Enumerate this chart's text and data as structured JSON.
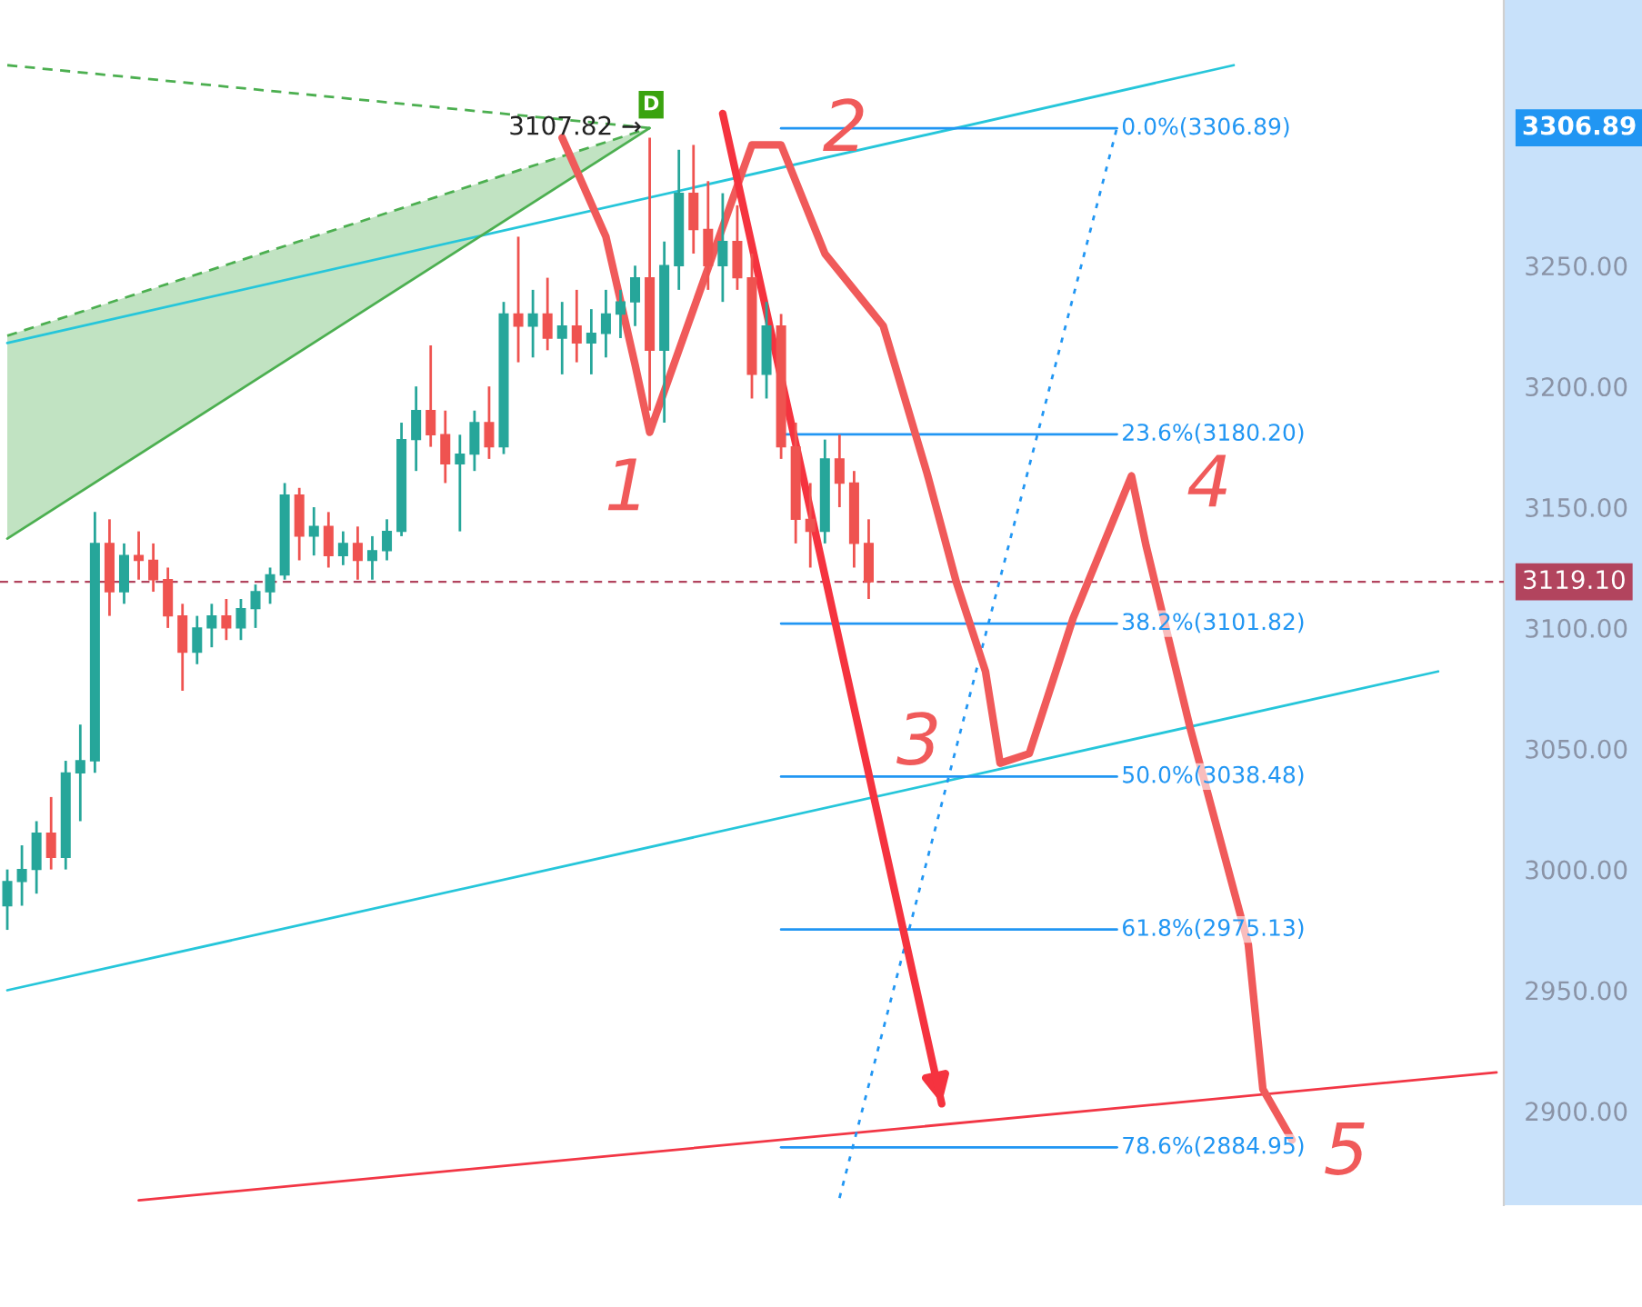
{
  "chart_data": {
    "type": "candlestick",
    "categories": [
      null,
      null,
      null,
      null,
      null,
      null,
      null,
      null,
      null,
      null,
      null,
      null,
      null,
      null,
      null,
      null,
      null,
      null,
      null,
      null,
      null,
      null,
      null,
      null,
      null,
      null,
      null,
      null,
      null,
      null,
      null,
      null,
      null,
      null,
      null,
      null,
      null,
      null,
      null,
      null,
      null,
      null,
      null,
      null,
      null,
      null,
      null,
      null,
      null,
      null,
      null,
      null,
      null,
      null,
      null,
      null,
      null,
      null,
      null,
      null,
      null,
      null,
      null,
      null,
      null,
      null,
      null,
      null,
      null,
      null,
      null,
      null,
      null,
      null,
      null,
      null,
      null,
      null,
      null,
      null,
      null,
      null,
      null,
      null,
      null,
      null,
      null,
      null,
      null,
      null,
      null,
      null,
      null,
      null,
      null,
      null,
      null,
      null,
      null,
      null,
      null,
      null,
      null
    ],
    "ohlc": [
      [
        2985,
        3000,
        2975,
        2995
      ],
      [
        2995,
        3010,
        2985,
        3000
      ],
      [
        3000,
        3020,
        2990,
        3015
      ],
      [
        3015,
        3030,
        3000,
        3005
      ],
      [
        3005,
        3045,
        3000,
        3040
      ],
      [
        3040,
        3060,
        3020,
        3045
      ],
      [
        3045,
        3148,
        3040,
        3135
      ],
      [
        3135,
        3145,
        3105,
        3115
      ],
      [
        3115,
        3135,
        3110,
        3130
      ],
      [
        3130,
        3140,
        3120,
        3128
      ],
      [
        3128,
        3135,
        3115,
        3120
      ],
      [
        3120,
        3125,
        3100,
        3105
      ],
      [
        3105,
        3110,
        3074,
        3090
      ],
      [
        3090,
        3105,
        3085,
        3100
      ],
      [
        3100,
        3110,
        3092,
        3105
      ],
      [
        3105,
        3112,
        3095,
        3100
      ],
      [
        3100,
        3112,
        3095,
        3108
      ],
      [
        3108,
        3118,
        3100,
        3115
      ],
      [
        3115,
        3125,
        3110,
        3122
      ],
      [
        3122,
        3160,
        3120,
        3155
      ],
      [
        3155,
        3158,
        3128,
        3138
      ],
      [
        3138,
        3150,
        3130,
        3142
      ],
      [
        3142,
        3148,
        3125,
        3130
      ],
      [
        3130,
        3140,
        3126,
        3135
      ],
      [
        3135,
        3142,
        3120,
        3128
      ],
      [
        3128,
        3138,
        3120,
        3132
      ],
      [
        3132,
        3145,
        3128,
        3140
      ],
      [
        3140,
        3185,
        3138,
        3178
      ],
      [
        3178,
        3200,
        3165,
        3190
      ],
      [
        3190,
        3217,
        3175,
        3180
      ],
      [
        3180,
        3190,
        3160,
        3168
      ],
      [
        3168,
        3180,
        3140,
        3172
      ],
      [
        3172,
        3190,
        3165,
        3185
      ],
      [
        3185,
        3200,
        3170,
        3175
      ],
      [
        3175,
        3235,
        3172,
        3230
      ],
      [
        3230,
        3262,
        3210,
        3225
      ],
      [
        3225,
        3240,
        3212,
        3230
      ],
      [
        3230,
        3245,
        3215,
        3220
      ],
      [
        3220,
        3235,
        3205,
        3225
      ],
      [
        3225,
        3240,
        3210,
        3218
      ],
      [
        3218,
        3232,
        3205,
        3222
      ],
      [
        3222,
        3240,
        3212,
        3230
      ],
      [
        3230,
        3240,
        3220,
        3235
      ],
      [
        3235,
        3250,
        3225,
        3245
      ],
      [
        3245,
        3303,
        3190,
        3215
      ],
      [
        3215,
        3260,
        3185,
        3250
      ],
      [
        3250,
        3298,
        3240,
        3280
      ],
      [
        3280,
        3300,
        3255,
        3265
      ],
      [
        3265,
        3285,
        3240,
        3250
      ],
      [
        3250,
        3280,
        3235,
        3260
      ],
      [
        3260,
        3275,
        3240,
        3245
      ],
      [
        3245,
        3255,
        3195,
        3205
      ],
      [
        3205,
        3235,
        3195,
        3225
      ],
      [
        3225,
        3230,
        3170,
        3175
      ],
      [
        3175,
        3185,
        3135,
        3145
      ],
      [
        3145,
        3160,
        3125,
        3140
      ],
      [
        3140,
        3178,
        3135,
        3170
      ],
      [
        3170,
        3180,
        3150,
        3160
      ],
      [
        3160,
        3165,
        3125,
        3135
      ],
      [
        3135,
        3145,
        3112,
        3119.1
      ],
      null,
      null,
      null,
      null,
      null,
      null,
      null,
      null,
      null,
      null,
      null,
      null,
      null,
      null,
      null,
      null,
      null,
      null,
      null,
      null,
      null,
      null,
      null,
      null,
      null,
      null,
      null,
      null,
      null,
      null,
      null,
      null,
      null,
      null,
      null,
      null,
      null,
      null,
      null,
      null,
      null,
      null,
      null
    ],
    "series": [
      {
        "type": "line",
        "color": "#26c6da",
        "values": [
          3218,
          null,
          null,
          null,
          null,
          null,
          null,
          null,
          null,
          null,
          null,
          null,
          null,
          null,
          null,
          null,
          null,
          null,
          null,
          null,
          null,
          null,
          null,
          null,
          null,
          null,
          null,
          null,
          null,
          null,
          null,
          null,
          null,
          null,
          null,
          null,
          null,
          null,
          null,
          null,
          null,
          null,
          null,
          null,
          null,
          null,
          null,
          null,
          null,
          null,
          null,
          null,
          null,
          null,
          null,
          null,
          null,
          null,
          null,
          null,
          null,
          null,
          null,
          null,
          null,
          null,
          null,
          null,
          null,
          null,
          null,
          null,
          null,
          null,
          null,
          null,
          null,
          null,
          null,
          null,
          null,
          null,
          null,
          null,
          3333,
          null,
          null,
          null,
          null,
          null,
          null,
          null,
          null,
          null,
          null,
          null,
          null,
          null,
          null,
          null,
          null,
          null,
          null
        ]
      },
      {
        "type": "line",
        "color": "#26c6da",
        "values": [
          2950,
          null,
          null,
          null,
          null,
          null,
          null,
          null,
          null,
          null,
          null,
          null,
          null,
          null,
          null,
          null,
          null,
          null,
          null,
          null,
          null,
          null,
          null,
          null,
          null,
          null,
          null,
          null,
          null,
          null,
          null,
          null,
          null,
          null,
          null,
          null,
          null,
          null,
          null,
          null,
          null,
          null,
          null,
          null,
          null,
          null,
          null,
          null,
          null,
          null,
          null,
          null,
          null,
          null,
          null,
          null,
          null,
          null,
          null,
          null,
          null,
          null,
          null,
          null,
          null,
          null,
          null,
          null,
          null,
          null,
          null,
          null,
          null,
          null,
          null,
          null,
          null,
          null,
          null,
          null,
          null,
          null,
          null,
          null,
          null,
          null,
          null,
          null,
          null,
          null,
          null,
          null,
          null,
          null,
          null,
          null,
          null,
          null,
          3082,
          null,
          null,
          null,
          null
        ]
      },
      {
        "type": "line",
        "color": "#f23645",
        "values": [
          null,
          null,
          null,
          null,
          null,
          null,
          null,
          null,
          null,
          2863,
          null,
          null,
          null,
          null,
          null,
          null,
          null,
          null,
          null,
          null,
          null,
          null,
          null,
          null,
          null,
          null,
          null,
          null,
          null,
          null,
          null,
          null,
          null,
          null,
          null,
          null,
          null,
          null,
          null,
          null,
          null,
          null,
          null,
          null,
          null,
          null,
          null,
          null,
          null,
          null,
          null,
          null,
          null,
          null,
          null,
          null,
          null,
          null,
          null,
          null,
          null,
          null,
          null,
          null,
          null,
          null,
          null,
          null,
          null,
          null,
          null,
          null,
          null,
          null,
          null,
          null,
          null,
          null,
          null,
          null,
          null,
          null,
          null,
          null,
          null,
          null,
          null,
          null,
          null,
          null,
          null,
          null,
          null,
          null,
          null,
          null,
          null,
          null,
          null,
          null,
          null,
          null,
          2916
        ]
      },
      {
        "type": "line",
        "color": "#4caf50",
        "line_style": "dashed",
        "values": [
          3333,
          null,
          null,
          null,
          null,
          null,
          null,
          null,
          null,
          null,
          null,
          null,
          null,
          null,
          null,
          null,
          null,
          null,
          null,
          null,
          null,
          null,
          null,
          null,
          null,
          null,
          null,
          null,
          null,
          null,
          null,
          null,
          null,
          null,
          null,
          null,
          null,
          null,
          null,
          null,
          null,
          null,
          null,
          null,
          3307,
          null,
          null,
          null,
          null,
          null,
          null,
          null,
          null,
          null,
          null,
          null,
          null,
          null,
          null,
          null,
          null,
          null,
          null,
          null,
          null,
          null,
          null,
          null,
          null,
          null,
          null,
          null,
          null,
          null,
          null,
          null,
          null,
          null,
          null,
          null,
          null,
          null,
          null,
          null,
          null,
          null,
          null,
          null,
          null,
          null,
          null,
          null,
          null,
          null,
          null,
          null,
          null,
          null,
          null,
          null,
          null,
          null,
          null
        ]
      },
      {
        "type": "line",
        "color": "#4caf50",
        "line_style": "dashed",
        "values": [
          3221,
          null,
          null,
          null,
          null,
          null,
          null,
          null,
          null,
          null,
          null,
          null,
          null,
          null,
          null,
          null,
          null,
          null,
          null,
          null,
          null,
          null,
          null,
          null,
          null,
          null,
          null,
          null,
          null,
          null,
          null,
          null,
          null,
          null,
          null,
          null,
          null,
          null,
          null,
          null,
          null,
          null,
          null,
          null,
          3307,
          null,
          null,
          null,
          null,
          null,
          null,
          null,
          null,
          null,
          null,
          null,
          null,
          null,
          null,
          null,
          null,
          null,
          null,
          null,
          null,
          null,
          null,
          null,
          null,
          null,
          null,
          null,
          null,
          null,
          null,
          null,
          null,
          null,
          null,
          null,
          null,
          null,
          null,
          null,
          null,
          null,
          null,
          null,
          null,
          null,
          null,
          null,
          null,
          null,
          null,
          null,
          null,
          null,
          null,
          null,
          null,
          null,
          null
        ],
        "lower": [
          3137,
          null,
          null,
          null,
          null,
          null,
          null,
          null,
          null,
          null,
          null,
          null,
          null,
          null,
          null,
          null,
          null,
          null,
          null,
          null,
          null,
          null,
          null,
          null,
          null,
          null,
          null,
          null,
          null,
          null,
          null,
          null,
          null,
          null,
          null,
          null,
          null,
          null,
          null,
          null,
          null,
          null,
          null,
          null,
          3307,
          null,
          null,
          null,
          null,
          null,
          null,
          null,
          null,
          null,
          null,
          null,
          null,
          null,
          null,
          null,
          null,
          null,
          null,
          null,
          null,
          null,
          null,
          null,
          null,
          null,
          null,
          null,
          null,
          null,
          null,
          null,
          null,
          null,
          null,
          null,
          null,
          null,
          null,
          null,
          null,
          null,
          null,
          null,
          null,
          null,
          null,
          null,
          null,
          null,
          null,
          null,
          null,
          null,
          null,
          null,
          null,
          null,
          null
        ],
        "upper": [
          3221,
          null,
          null,
          null,
          null,
          null,
          null,
          null,
          null,
          null,
          null,
          null,
          null,
          null,
          null,
          null,
          null,
          null,
          null,
          null,
          null,
          null,
          null,
          null,
          null,
          null,
          null,
          null,
          null,
          null,
          null,
          null,
          null,
          null,
          null,
          null,
          null,
          null,
          null,
          null,
          null,
          null,
          null,
          null,
          3307,
          null,
          null,
          null,
          null,
          null,
          null,
          null,
          null,
          null,
          null,
          null,
          null,
          null,
          null,
          null,
          null,
          null,
          null,
          null,
          null,
          null,
          null,
          null,
          null,
          null,
          null,
          null,
          null,
          null,
          null,
          null,
          null,
          null,
          null,
          null,
          null,
          null,
          null,
          null,
          null,
          null,
          null,
          null,
          null,
          null,
          null,
          null,
          null,
          null,
          null,
          null,
          null,
          null,
          null,
          null,
          null,
          null,
          null
        ]
      },
      {
        "type": "line",
        "color": "#4caf50",
        "values": [
          3137,
          null,
          null,
          null,
          null,
          null,
          null,
          null,
          null,
          null,
          null,
          null,
          null,
          null,
          null,
          null,
          null,
          null,
          null,
          null,
          null,
          null,
          null,
          null,
          null,
          null,
          null,
          null,
          null,
          null,
          null,
          null,
          null,
          null,
          null,
          null,
          null,
          null,
          null,
          null,
          null,
          null,
          null,
          null,
          3307,
          null,
          null,
          null,
          null,
          null,
          null,
          null,
          null,
          null,
          null,
          null,
          null,
          null,
          null,
          null,
          null,
          null,
          null,
          null,
          null,
          null,
          null,
          null,
          null,
          null,
          null,
          null,
          null,
          null,
          null,
          null,
          null,
          null,
          null,
          null,
          null,
          null,
          null,
          null,
          null,
          null,
          null,
          null,
          null,
          null,
          null,
          null,
          null,
          null,
          null,
          null,
          null,
          null,
          null,
          null,
          null,
          null,
          null
        ]
      },
      {
        "type": "line",
        "color": "#2196f3",
        "line_style": "dotted",
        "values": [
          null,
          null,
          null,
          null,
          null,
          null,
          null,
          null,
          null,
          null,
          null,
          null,
          null,
          null,
          null,
          null,
          null,
          null,
          null,
          null,
          null,
          null,
          null,
          null,
          null,
          null,
          null,
          null,
          null,
          null,
          null,
          null,
          null,
          null,
          null,
          null,
          null,
          null,
          null,
          null,
          null,
          null,
          null,
          null,
          null,
          null,
          null,
          null,
          null,
          null,
          null,
          null,
          null,
          null,
          null,
          null,
          null,
          2864,
          null,
          null,
          null,
          null,
          null,
          null,
          null,
          null,
          null,
          null,
          null,
          null,
          null,
          null,
          null,
          null,
          null,
          null,
          3307,
          null,
          null,
          null,
          null,
          null,
          null,
          null,
          null,
          null,
          null,
          null,
          null,
          null,
          null,
          null,
          null,
          null,
          null,
          null,
          null,
          null,
          null,
          null,
          null,
          null,
          null
        ]
      },
      {
        "type": "line",
        "color": "#2196f3",
        "name": "0.0%(3306.89)",
        "values": [
          null,
          null,
          null,
          null,
          null,
          null,
          null,
          null,
          null,
          null,
          null,
          null,
          null,
          null,
          null,
          null,
          null,
          null,
          null,
          null,
          null,
          null,
          null,
          null,
          null,
          null,
          null,
          null,
          null,
          null,
          null,
          null,
          null,
          null,
          null,
          null,
          null,
          null,
          null,
          null,
          null,
          null,
          null,
          null,
          null,
          null,
          null,
          null,
          null,
          null,
          null,
          null,
          null,
          3306.89,
          null,
          null,
          null,
          null,
          null,
          null,
          null,
          null,
          null,
          null,
          null,
          null,
          null,
          null,
          null,
          null,
          null,
          null,
          null,
          null,
          null,
          null,
          3306.89,
          null,
          null,
          null,
          null,
          null,
          null,
          null,
          null,
          null,
          null,
          null,
          null,
          null,
          null,
          null,
          null,
          null,
          null,
          null,
          null,
          null,
          null,
          null,
          null,
          null,
          null
        ]
      },
      {
        "type": "line",
        "color": "#2196f3",
        "name": "23.6%(3180.20)",
        "values": [
          null,
          null,
          null,
          null,
          null,
          null,
          null,
          null,
          null,
          null,
          null,
          null,
          null,
          null,
          null,
          null,
          null,
          null,
          null,
          null,
          null,
          null,
          null,
          null,
          null,
          null,
          null,
          null,
          null,
          null,
          null,
          null,
          null,
          null,
          null,
          null,
          null,
          null,
          null,
          null,
          null,
          null,
          null,
          null,
          null,
          null,
          null,
          null,
          null,
          null,
          null,
          null,
          null,
          3180.2,
          null,
          null,
          null,
          null,
          null,
          null,
          null,
          null,
          null,
          null,
          null,
          null,
          null,
          null,
          null,
          null,
          null,
          null,
          null,
          null,
          null,
          null,
          3180.2,
          null,
          null,
          null,
          null,
          null,
          null,
          null,
          null,
          null,
          null,
          null,
          null,
          null,
          null,
          null,
          null,
          null,
          null,
          null,
          null,
          null,
          null,
          null,
          null,
          null,
          null
        ]
      },
      {
        "type": "line",
        "color": "#2196f3",
        "name": "38.2%(3101.82)",
        "values": [
          null,
          null,
          null,
          null,
          null,
          null,
          null,
          null,
          null,
          null,
          null,
          null,
          null,
          null,
          null,
          null,
          null,
          null,
          null,
          null,
          null,
          null,
          null,
          null,
          null,
          null,
          null,
          null,
          null,
          null,
          null,
          null,
          null,
          null,
          null,
          null,
          null,
          null,
          null,
          null,
          null,
          null,
          null,
          null,
          null,
          null,
          null,
          null,
          null,
          null,
          null,
          null,
          null,
          3101.82,
          null,
          null,
          null,
          null,
          null,
          null,
          null,
          null,
          null,
          null,
          null,
          null,
          null,
          null,
          null,
          null,
          null,
          null,
          null,
          null,
          null,
          null,
          3101.82,
          null,
          null,
          null,
          null,
          null,
          null,
          null,
          null,
          null,
          null,
          null,
          null,
          null,
          null,
          null,
          null,
          null,
          null,
          null,
          null,
          null,
          null,
          null,
          null,
          null,
          null
        ]
      },
      {
        "type": "line",
        "color": "#2196f3",
        "name": "50.0%(3038.48)",
        "values": [
          null,
          null,
          null,
          null,
          null,
          null,
          null,
          null,
          null,
          null,
          null,
          null,
          null,
          null,
          null,
          null,
          null,
          null,
          null,
          null,
          null,
          null,
          null,
          null,
          null,
          null,
          null,
          null,
          null,
          null,
          null,
          null,
          null,
          null,
          null,
          null,
          null,
          null,
          null,
          null,
          null,
          null,
          null,
          null,
          null,
          null,
          null,
          null,
          null,
          null,
          null,
          null,
          null,
          3038.48,
          null,
          null,
          null,
          null,
          null,
          null,
          null,
          null,
          null,
          null,
          null,
          null,
          null,
          null,
          null,
          null,
          null,
          null,
          null,
          null,
          null,
          null,
          3038.48,
          null,
          null,
          null,
          null,
          null,
          null,
          null,
          null,
          null,
          null,
          null,
          null,
          null,
          null,
          null,
          null,
          null,
          null,
          null,
          null,
          null,
          null,
          null,
          null,
          null,
          null
        ]
      },
      {
        "type": "line",
        "color": "#2196f3",
        "name": "61.8%(2975.13)",
        "values": [
          null,
          null,
          null,
          null,
          null,
          null,
          null,
          null,
          null,
          null,
          null,
          null,
          null,
          null,
          null,
          null,
          null,
          null,
          null,
          null,
          null,
          null,
          null,
          null,
          null,
          null,
          null,
          null,
          null,
          null,
          null,
          null,
          null,
          null,
          null,
          null,
          null,
          null,
          null,
          null,
          null,
          null,
          null,
          null,
          null,
          null,
          null,
          null,
          null,
          null,
          null,
          null,
          null,
          2975.13,
          null,
          null,
          null,
          null,
          null,
          null,
          null,
          null,
          null,
          null,
          null,
          null,
          null,
          null,
          null,
          null,
          null,
          null,
          null,
          null,
          null,
          null,
          2975.13,
          null,
          null,
          null,
          null,
          null,
          null,
          null,
          null,
          null,
          null,
          null,
          null,
          null,
          null,
          null,
          null,
          null,
          null,
          null,
          null,
          null,
          null,
          null,
          null,
          null,
          null
        ]
      },
      {
        "type": "line",
        "color": "#2196f3",
        "name": "78.6%(2884.95)",
        "values": [
          null,
          null,
          null,
          null,
          null,
          null,
          null,
          null,
          null,
          null,
          null,
          null,
          null,
          null,
          null,
          null,
          null,
          null,
          null,
          null,
          null,
          null,
          null,
          null,
          null,
          null,
          null,
          null,
          null,
          null,
          null,
          null,
          null,
          null,
          null,
          null,
          null,
          null,
          null,
          null,
          null,
          null,
          null,
          null,
          null,
          null,
          null,
          null,
          null,
          null,
          null,
          null,
          null,
          2884.95,
          null,
          null,
          null,
          null,
          null,
          null,
          null,
          null,
          null,
          null,
          null,
          null,
          null,
          null,
          null,
          null,
          null,
          null,
          null,
          null,
          null,
          null,
          2884.95,
          null,
          null,
          null,
          null,
          null,
          null,
          null,
          null,
          null,
          null,
          null,
          null,
          null,
          null,
          null,
          null,
          null,
          null,
          null,
          null,
          null,
          null,
          null,
          null,
          null,
          null
        ]
      },
      {
        "type": "line",
        "color": "#f05a5a",
        "values": [
          null,
          null,
          null,
          null,
          null,
          null,
          null,
          null,
          null,
          null,
          null,
          null,
          null,
          null,
          null,
          null,
          null,
          null,
          null,
          null,
          null,
          null,
          null,
          null,
          null,
          null,
          null,
          null,
          null,
          null,
          null,
          null,
          null,
          null,
          null,
          null,
          null,
          null,
          3303,
          null,
          null,
          3262,
          null,
          3209,
          3181,
          null,
          null,
          null,
          null,
          null,
          null,
          3300,
          null,
          3300,
          null,
          null,
          3255,
          null,
          null,
          null,
          3225,
          null,
          null,
          3164,
          null,
          3119,
          null,
          3082,
          3044,
          null,
          3048,
          null,
          null,
          3104,
          null,
          null,
          null,
          3163,
          3134,
          null,
          null,
          3059,
          null,
          3014,
          null,
          2969,
          2909,
          null,
          2888,
          null,
          null,
          null,
          null,
          null,
          null,
          null,
          null,
          null,
          null,
          null,
          null,
          null,
          null
        ]
      },
      {
        "type": "line",
        "color": "#f5333f",
        "values": [
          null,
          null,
          null,
          null,
          null,
          null,
          null,
          null,
          null,
          null,
          null,
          null,
          null,
          null,
          null,
          null,
          null,
          null,
          null,
          null,
          null,
          null,
          null,
          null,
          null,
          null,
          null,
          null,
          null,
          null,
          null,
          null,
          null,
          null,
          null,
          null,
          null,
          null,
          null,
          null,
          null,
          null,
          null,
          null,
          null,
          null,
          null,
          null,
          null,
          3313,
          null,
          null,
          null,
          null,
          null,
          null,
          null,
          null,
          null,
          null,
          null,
          null,
          null,
          null,
          2903,
          null,
          null,
          null,
          null,
          null,
          null,
          null,
          null,
          null,
          null,
          null,
          null,
          null,
          null,
          null,
          null,
          null,
          null,
          null,
          null,
          null,
          null,
          null,
          null,
          null,
          null,
          null,
          null,
          null,
          null,
          null,
          null,
          null,
          null,
          null,
          null,
          null,
          null
        ]
      }
    ],
    "ylim": [
      2861,
      3360
    ],
    "yticks": [
      {
        "value": 2900,
        "label": "2900.00"
      },
      {
        "value": 2950,
        "label": "2950.00"
      },
      {
        "value": 3000,
        "label": "3000.00"
      },
      {
        "value": 3050,
        "label": "3050.00"
      },
      {
        "value": 3100,
        "label": "3100.00"
      },
      {
        "value": 3150,
        "label": "3150.00"
      },
      {
        "value": 3200,
        "label": "3200.00"
      },
      {
        "value": 3250,
        "label": "3250.00"
      }
    ],
    "tick_labels": "y",
    "ref_lines": [
      {
        "axis": "y",
        "value": 3119.1,
        "label": "3119.10",
        "color": "#b2445e",
        "line_style": "dashed"
      }
    ],
    "annotations": [
      "3306.89",
      "3107.82 →",
      "D",
      "1",
      "2",
      "3",
      "4",
      "5"
    ]
  }
}
